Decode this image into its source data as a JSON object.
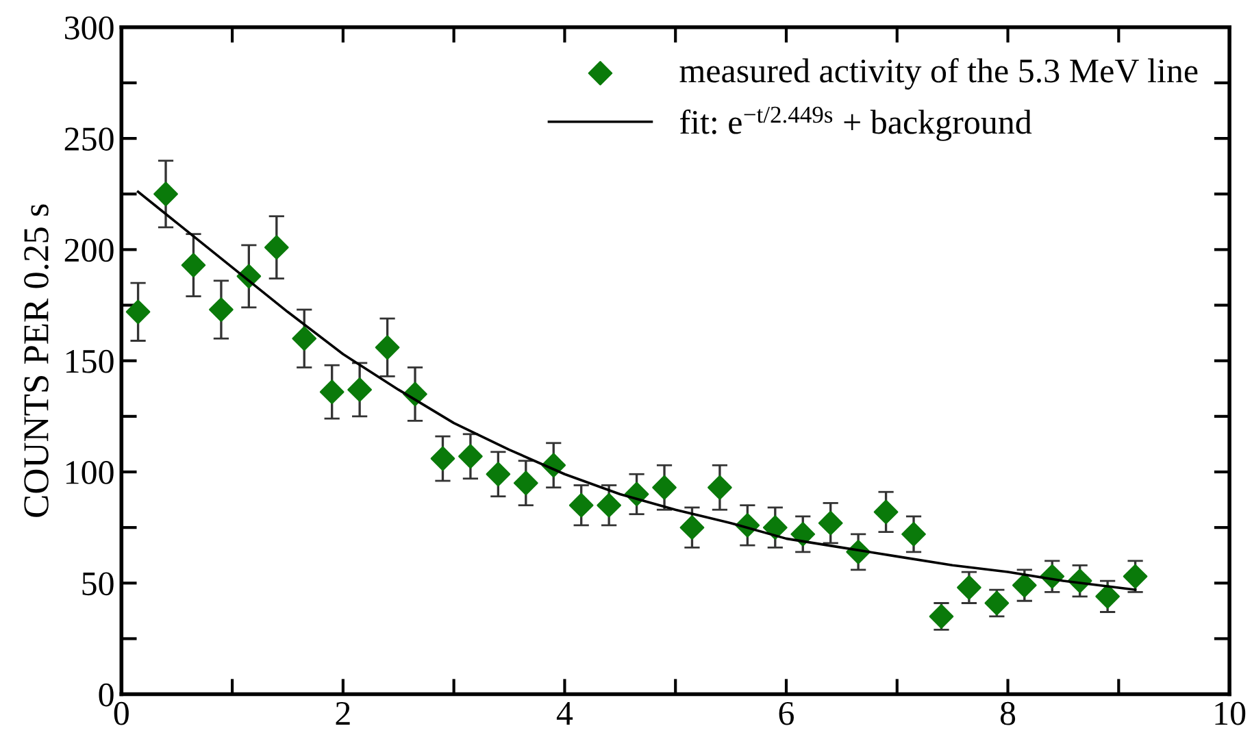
{
  "chart_data": {
    "type": "scatter",
    "ylabel": "COUNTS PER 0.25 s",
    "xlim": [
      0,
      10
    ],
    "ylim": [
      0,
      300
    ],
    "xticks": [
      0,
      {
        "value": 1,
        "label": null
      },
      2,
      {
        "value": 3,
        "label": null
      },
      4,
      {
        "value": 5,
        "label": null
      },
      6,
      {
        "value": 7,
        "label": null
      },
      8,
      {
        "value": 9,
        "label": null
      },
      10
    ],
    "yticks": [
      0,
      {
        "value": 25,
        "label": null
      },
      50,
      {
        "value": 75,
        "label": null
      },
      100,
      {
        "value": 125,
        "label": null
      },
      150,
      {
        "value": 175,
        "label": null
      },
      200,
      {
        "value": 225,
        "label": null
      },
      250,
      {
        "value": 275,
        "label": null
      },
      300
    ],
    "grid": false,
    "legend": "top right",
    "series": [
      {
        "name": "measured activity of the 5.3 MeV line",
        "marker": "diamond",
        "color": "#0a7a0a",
        "x": [
          0.15,
          0.4,
          0.65,
          0.9,
          1.15,
          1.4,
          1.65,
          1.9,
          2.15,
          2.4,
          2.65,
          2.9,
          3.15,
          3.4,
          3.65,
          3.9,
          4.15,
          4.4,
          4.65,
          4.9,
          5.15,
          5.4,
          5.65,
          5.9,
          6.15,
          6.4,
          6.65,
          6.9,
          7.15,
          7.4,
          7.65,
          7.9,
          8.15,
          8.4,
          8.65,
          8.9,
          9.15
        ],
        "values": [
          172,
          225,
          193,
          173,
          188,
          201,
          160,
          136,
          137,
          156,
          135,
          106,
          107,
          99,
          95,
          103,
          85,
          85,
          90,
          93,
          75,
          93,
          76,
          75,
          72,
          77,
          64,
          82,
          72,
          35,
          48,
          41,
          49,
          53,
          51,
          44,
          53
        ],
        "errors": [
          13,
          15,
          14,
          13,
          14,
          14,
          13,
          12,
          12,
          13,
          12,
          10,
          10,
          10,
          10,
          10,
          9,
          9,
          9,
          10,
          9,
          10,
          9,
          9,
          8,
          9,
          8,
          9,
          8,
          6,
          7,
          6,
          7,
          7,
          7,
          7,
          7
        ]
      },
      {
        "name": "fit: e$^{−t/2.449s}$ + background",
        "type": "line",
        "line_style": "solid",
        "color": "#000000",
        "x": [
          0.15,
          0.5,
          1,
          1.5,
          2,
          2.5,
          3,
          3.5,
          4,
          4.5,
          5,
          5.5,
          6,
          6.5,
          7,
          7.5,
          8,
          8.5,
          9.15
        ],
        "values": [
          226,
          212,
          192,
          172,
          153,
          137,
          122,
          110,
          99,
          90,
          83,
          77,
          70,
          66,
          62,
          58,
          55,
          51,
          47
        ]
      }
    ]
  }
}
